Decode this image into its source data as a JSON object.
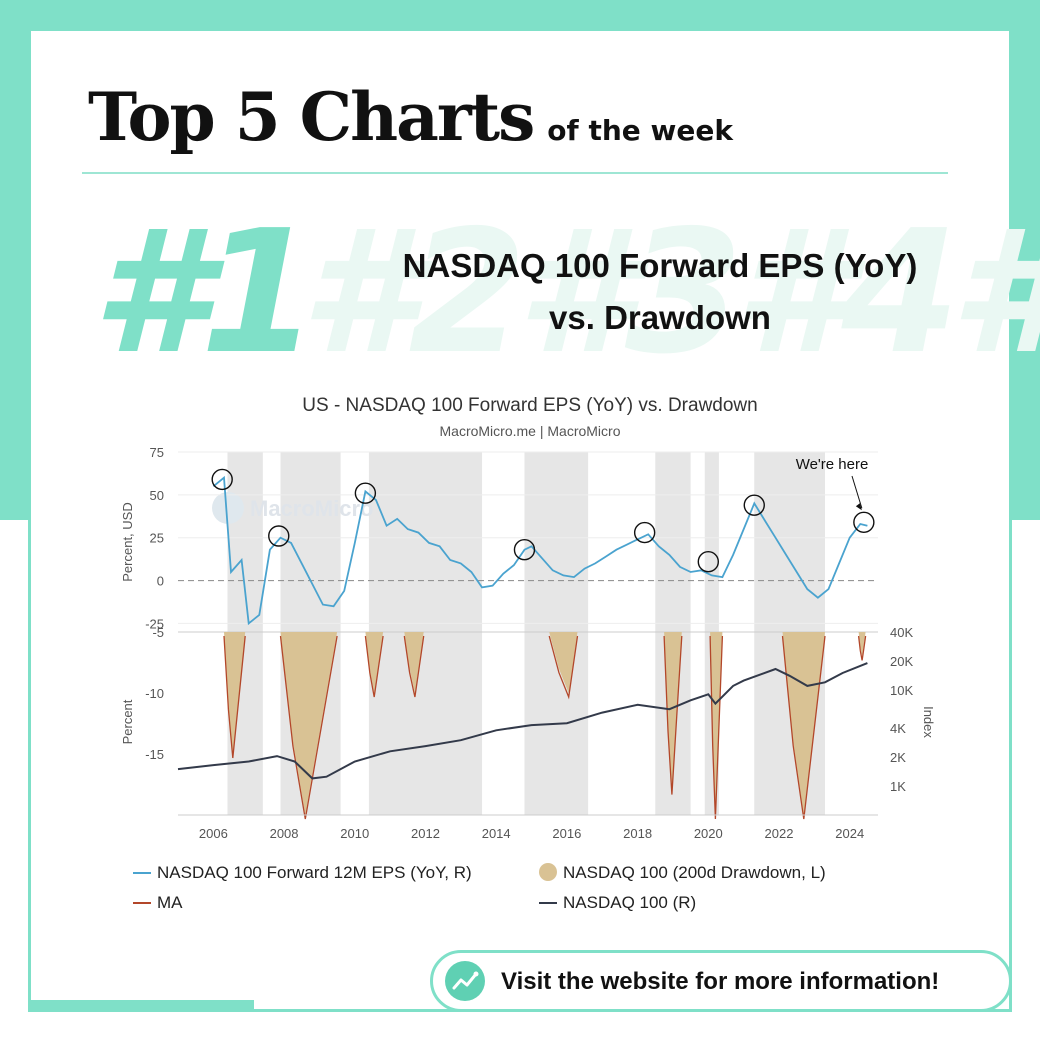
{
  "header": {
    "title": "Top 5 Charts",
    "subtitle": "of the week",
    "rank": "#1",
    "ghost_ranks": "#2#3#4#",
    "chart_title_line1": "NASDAQ 100 Forward EPS (YoY)",
    "chart_title_line2": "vs. Drawdown"
  },
  "cta": {
    "label": "Visit the website for more information!",
    "icon": "chart-trend-icon"
  },
  "colors": {
    "accent": "#7fe0c8",
    "eps": "#4aa3cf",
    "ma": "#b3472a",
    "drawdown": "#d9c294",
    "nasdaq": "#333a4a",
    "shade": "#e6e6e6"
  },
  "chart_data": {
    "type": "line",
    "title": "US - NASDAQ 100 Forward EPS (YoY) vs. Drawdown",
    "subtitle": "MacroMicro.me | MacroMicro",
    "watermark": "MacroMicro",
    "annotation": "We're here",
    "x_ticks": [
      "2006",
      "2008",
      "2010",
      "2012",
      "2014",
      "2016",
      "2018",
      "2020",
      "2022",
      "2024"
    ],
    "xlim": [
      2005,
      2024.8
    ],
    "top_panel": {
      "ylabel": "Percent, USD",
      "ylim": [
        -30,
        75
      ],
      "yticks": [
        "75",
        "50",
        "25",
        "0",
        "-25"
      ],
      "yticks_values": [
        75,
        50,
        25,
        0,
        -25
      ]
    },
    "bottom_panel": {
      "left_ylabel": "Percent",
      "left_yticks": [
        "-5",
        "-10",
        "-15"
      ],
      "left_yticks_values": [
        -5,
        -10,
        -15
      ],
      "left_ylim": [
        -5,
        -20
      ],
      "right_ylabel": "Index",
      "right_yticks": [
        "40K",
        "20K",
        "10K",
        "4K",
        "2K",
        "1K"
      ],
      "right_yticks_values": [
        40000,
        20000,
        10000,
        4000,
        2000,
        1000
      ],
      "right_ylim_log": [
        500,
        40000
      ]
    },
    "shaded_periods": [
      [
        2006.4,
        2007.4
      ],
      [
        2007.9,
        2009.6
      ],
      [
        2010.4,
        2013.6
      ],
      [
        2014.8,
        2016.6
      ],
      [
        2018.5,
        2019.5
      ],
      [
        2019.9,
        2020.3
      ],
      [
        2021.3,
        2023.3
      ]
    ],
    "legend": [
      "NASDAQ 100 Forward 12M EPS (YoY, R)",
      "NASDAQ 100 (200d Drawdown, L)",
      "MA",
      "NASDAQ 100 (R)"
    ],
    "series": [
      {
        "name": "NASDAQ 100 Forward 12M EPS (YoY, R)",
        "x": [
          2006.0,
          2006.3,
          2006.5,
          2006.8,
          2007.0,
          2007.3,
          2007.6,
          2007.9,
          2008.2,
          2008.5,
          2008.8,
          2009.1,
          2009.4,
          2009.7,
          2010.0,
          2010.3,
          2010.6,
          2010.9,
          2011.2,
          2011.5,
          2011.8,
          2012.1,
          2012.4,
          2012.7,
          2013.0,
          2013.3,
          2013.6,
          2013.9,
          2014.2,
          2014.5,
          2014.8,
          2015.0,
          2015.3,
          2015.6,
          2015.9,
          2016.2,
          2016.5,
          2016.8,
          2017.1,
          2017.4,
          2017.7,
          2018.0,
          2018.3,
          2018.6,
          2018.9,
          2019.2,
          2019.5,
          2019.8,
          2020.1,
          2020.4,
          2020.7,
          2021.0,
          2021.3,
          2021.6,
          2021.9,
          2022.2,
          2022.5,
          2022.8,
          2023.1,
          2023.4,
          2023.7,
          2024.0,
          2024.3,
          2024.5
        ],
        "values": [
          55,
          60,
          5,
          12,
          -25,
          -20,
          18,
          25,
          22,
          10,
          -2,
          -14,
          -15,
          -6,
          22,
          52,
          47,
          32,
          36,
          30,
          28,
          22,
          20,
          12,
          10,
          5,
          -4,
          -3,
          4,
          9,
          18,
          20,
          13,
          6,
          3,
          2,
          7,
          10,
          14,
          18,
          21,
          24,
          27,
          20,
          15,
          8,
          5,
          6,
          3,
          2,
          15,
          30,
          45,
          35,
          25,
          15,
          5,
          -5,
          -10,
          -5,
          10,
          25,
          33,
          32
        ]
      },
      {
        "name": "NASDAQ 100 (R)",
        "x": [
          2005,
          2006,
          2007,
          2007.8,
          2008.3,
          2008.8,
          2009.2,
          2010,
          2011,
          2012,
          2013,
          2014,
          2015,
          2016,
          2017,
          2018,
          2018.9,
          2019.5,
          2020.0,
          2020.2,
          2020.7,
          2021.0,
          2021.9,
          2022.3,
          2022.8,
          2023.3,
          2023.8,
          2024.5
        ],
        "values": [
          1500,
          1650,
          1800,
          2050,
          1800,
          1200,
          1250,
          1800,
          2300,
          2600,
          3000,
          3800,
          4300,
          4500,
          5800,
          7000,
          6300,
          7800,
          9000,
          7200,
          11000,
          12500,
          16500,
          14000,
          11000,
          12000,
          15000,
          19000
        ]
      },
      {
        "name": "NASDAQ 100 (200d Drawdown, L)",
        "episodes": [
          {
            "start": 2006.3,
            "end": 2006.9,
            "trough": -15,
            "trough_at": 2006.55
          },
          {
            "start": 2007.9,
            "end": 2009.5,
            "trough": -20,
            "trough_at": 2008.6
          },
          {
            "start": 2010.3,
            "end": 2010.8,
            "trough": -10,
            "trough_at": 2010.55
          },
          {
            "start": 2011.4,
            "end": 2011.95,
            "trough": -10,
            "trough_at": 2011.7
          },
          {
            "start": 2015.5,
            "end": 2016.3,
            "trough": -10,
            "trough_at": 2016.05
          },
          {
            "start": 2018.75,
            "end": 2019.25,
            "trough": -18,
            "trough_at": 2018.97
          },
          {
            "start": 2020.05,
            "end": 2020.4,
            "trough": -20,
            "trough_at": 2020.2
          },
          {
            "start": 2022.1,
            "end": 2023.3,
            "trough": -20,
            "trough_at": 2022.7
          },
          {
            "start": 2024.25,
            "end": 2024.45,
            "trough": -7,
            "trough_at": 2024.35
          }
        ]
      }
    ],
    "highlight_circles": [
      {
        "x": 2006.25,
        "y": 59
      },
      {
        "x": 2007.85,
        "y": 26
      },
      {
        "x": 2010.3,
        "y": 51
      },
      {
        "x": 2014.8,
        "y": 18
      },
      {
        "x": 2018.2,
        "y": 28
      },
      {
        "x": 2020.0,
        "y": 11
      },
      {
        "x": 2021.3,
        "y": 44
      },
      {
        "x": 2024.4,
        "y": 34
      }
    ]
  }
}
